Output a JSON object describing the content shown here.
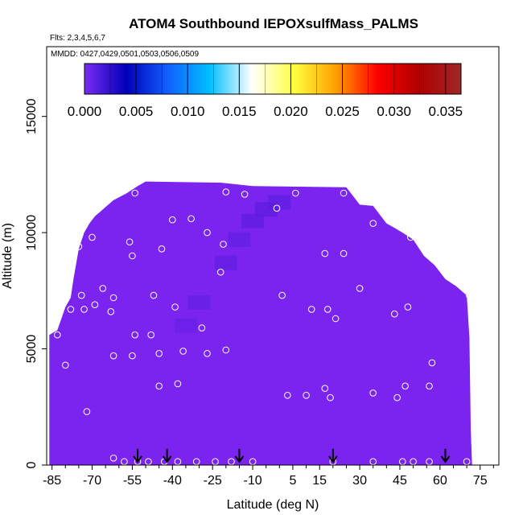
{
  "title": "ATOM4 Southbound IEPOXsulfMass_PALMS",
  "flights_note": "Flts: 2,3,4,5,6,7",
  "dates_note": "MMDD: 0427,0429,0501,0503,0506,0509",
  "colors": {
    "fill": "#7b24f0",
    "fill_dark": "#5c1de0",
    "marker": "#ffffff",
    "arrow": "#000000"
  },
  "colorbar": {
    "ticks": [
      "0.000",
      "0.005",
      "0.010",
      "0.015",
      "0.020",
      "0.025",
      "0.030",
      "0.035"
    ],
    "range": [
      0,
      0.0365
    ],
    "stops": [
      "#7a2cf0",
      "#0000b8",
      "#1060ff",
      "#00bfff",
      "#ffffff",
      "#ffff40",
      "#ffa000",
      "#ff0000",
      "#b00000",
      "#a02828"
    ]
  },
  "chart_data": {
    "type": "heatmap",
    "title": "ATOM4 Southbound IEPOXsulfMass_PALMS",
    "xlabel": "Latitude (deg N)",
    "ylabel": "Altitude (m)",
    "xlim": [
      -87,
      82
    ],
    "ylim": [
      0,
      18000
    ],
    "x_ticks": [
      -85,
      -70,
      -55,
      -40,
      -25,
      -10,
      5,
      15,
      30,
      45,
      60,
      75
    ],
    "y_ticks": [
      0,
      5000,
      10000,
      15000
    ],
    "color_variable": "IEPOXsulfMass_PALMS",
    "value_range_shown": [
      0.0,
      0.003
    ],
    "flight_profile_outline": [
      [
        -86,
        0
      ],
      [
        -86,
        5600
      ],
      [
        -83,
        5800
      ],
      [
        -80,
        6800
      ],
      [
        -78,
        7200
      ],
      [
        -77,
        8000
      ],
      [
        -75,
        9300
      ],
      [
        -73,
        10000
      ],
      [
        -71,
        10400
      ],
      [
        -69,
        10700
      ],
      [
        -65,
        11100
      ],
      [
        -62,
        11400
      ],
      [
        -57,
        11700
      ],
      [
        -53,
        12000
      ],
      [
        -50,
        12200
      ],
      [
        -22,
        12150
      ],
      [
        -10,
        12000
      ],
      [
        25,
        11950
      ],
      [
        30,
        11200
      ],
      [
        35,
        11150
      ],
      [
        40,
        10400
      ],
      [
        43,
        10200
      ],
      [
        46,
        10000
      ],
      [
        50,
        9700
      ],
      [
        54,
        9000
      ],
      [
        58,
        8600
      ],
      [
        62,
        8000
      ],
      [
        66,
        7700
      ],
      [
        70,
        7300
      ],
      [
        71,
        5500
      ],
      [
        71.5,
        1500
      ],
      [
        72,
        0
      ]
    ],
    "elevated_band": [
      [
        -15,
        9700,
        0.0016
      ],
      [
        -10,
        10500,
        0.0019
      ],
      [
        -5,
        11000,
        0.0022
      ],
      [
        0,
        11300,
        0.002
      ],
      [
        -20,
        8700,
        0.0014
      ],
      [
        -30,
        7000,
        0.0011
      ],
      [
        -35,
        6000,
        0.0009
      ]
    ],
    "sample_points": [
      [
        -54,
        11700
      ],
      [
        -20,
        11750
      ],
      [
        -13,
        11650
      ],
      [
        6,
        11700
      ],
      [
        24,
        11700
      ],
      [
        -1,
        11050
      ],
      [
        -40,
        10550
      ],
      [
        -33,
        10600
      ],
      [
        -27,
        10000
      ],
      [
        -21,
        9500
      ],
      [
        -56,
        9600
      ],
      [
        -55,
        9000
      ],
      [
        -44,
        9300
      ],
      [
        -75,
        9400
      ],
      [
        -74,
        10100
      ],
      [
        -70,
        9800
      ],
      [
        -22,
        8300
      ],
      [
        -66,
        7600
      ],
      [
        -62,
        7200
      ],
      [
        -47,
        7300
      ],
      [
        -74,
        7300
      ],
      [
        -78,
        6700
      ],
      [
        -73,
        6700
      ],
      [
        -69,
        6900
      ],
      [
        -63,
        6600
      ],
      [
        -39,
        6800
      ],
      [
        -29,
        5900
      ],
      [
        -54,
        5600
      ],
      [
        -48,
        5600
      ],
      [
        -55,
        4700
      ],
      [
        -45,
        4800
      ],
      [
        -36,
        4900
      ],
      [
        -27,
        4800
      ],
      [
        -20,
        4950
      ],
      [
        -80,
        4300
      ],
      [
        -62,
        4700
      ],
      [
        -45,
        3400
      ],
      [
        -38,
        3500
      ],
      [
        -72,
        2300
      ],
      [
        1,
        7300
      ],
      [
        12,
        6700
      ],
      [
        18,
        6700
      ],
      [
        24,
        9100
      ],
      [
        17,
        9100
      ],
      [
        30,
        7600
      ],
      [
        48,
        6800
      ],
      [
        43,
        6500
      ],
      [
        21,
        6300
      ],
      [
        56,
        9700
      ],
      [
        49,
        9800
      ],
      [
        35,
        10400
      ],
      [
        57,
        4400
      ],
      [
        56,
        3400
      ],
      [
        47,
        3400
      ],
      [
        35,
        3100
      ],
      [
        17,
        3300
      ],
      [
        10,
        3000
      ],
      [
        3,
        3000
      ],
      [
        19,
        2900
      ],
      [
        44,
        2900
      ],
      [
        -62,
        300
      ],
      [
        -58,
        150
      ],
      [
        -53,
        150
      ],
      [
        -49,
        150
      ],
      [
        -43,
        150
      ],
      [
        -38,
        150
      ],
      [
        -31,
        150
      ],
      [
        -24,
        150
      ],
      [
        -18,
        150
      ],
      [
        -10,
        150
      ],
      [
        20,
        150
      ],
      [
        35,
        150
      ],
      [
        46,
        150
      ],
      [
        50,
        150
      ],
      [
        56,
        150
      ],
      [
        70,
        150
      ],
      [
        71,
        7300
      ],
      [
        -83,
        5600
      ]
    ],
    "arrow_latitudes": [
      -53,
      -42,
      -15,
      20,
      62
    ]
  }
}
